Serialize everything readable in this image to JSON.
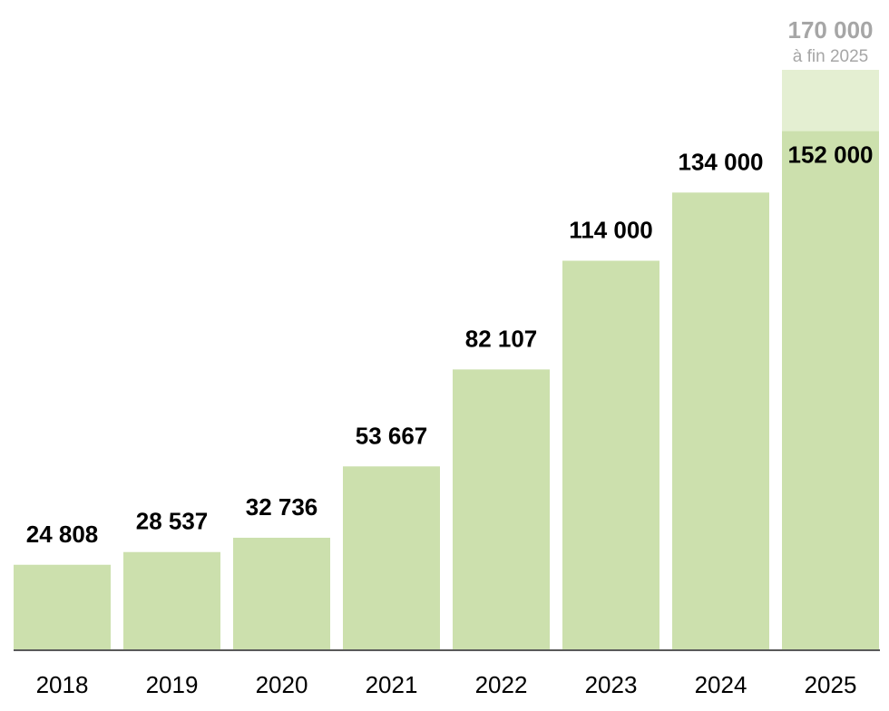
{
  "chart_data": {
    "type": "bar",
    "categories": [
      "2018",
      "2019",
      "2020",
      "2021",
      "2022",
      "2023",
      "2024",
      "2025"
    ],
    "values": [
      24808,
      28537,
      32736,
      53667,
      82107,
      114000,
      134000,
      152000
    ],
    "value_labels": [
      "24 808",
      "28 537",
      "32 736",
      "53 667",
      "82 107",
      "114 000",
      "134 000",
      "152 000"
    ],
    "target": {
      "category": "2025",
      "value": 170000,
      "label": "170 000",
      "sublabel": "à fin 2025"
    },
    "title": "",
    "xlabel": "",
    "ylabel": "",
    "ylim": [
      0,
      170000
    ],
    "grid": false,
    "colors": {
      "bar": "#cce0ad",
      "target_bar": "#e4efd2",
      "axis": "#595959",
      "value_label": "#000000",
      "target_label": "#a6a6a6",
      "tick_label": "#000000"
    }
  }
}
